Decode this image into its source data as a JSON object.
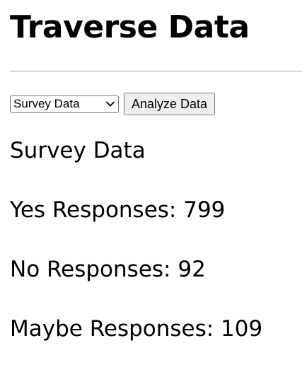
{
  "header": {
    "title": "Traverse Data"
  },
  "controls": {
    "dataset_select": {
      "selected": "Survey Data",
      "options": [
        "Survey Data"
      ]
    },
    "analyze_label": "Analyze Data"
  },
  "results": {
    "heading": "Survey Data",
    "yes_label": "Yes Responses: 799",
    "no_label": "No Responses: 92",
    "maybe_label": "Maybe Responses: 109"
  }
}
